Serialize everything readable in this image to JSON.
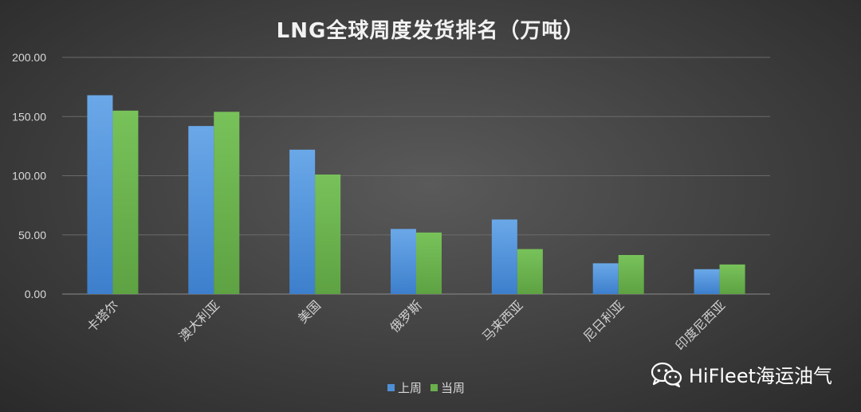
{
  "chart_data": {
    "type": "bar",
    "title": "LNG全球周度发货排名（万吨）",
    "categories": [
      "卡塔尔",
      "澳大利亚",
      "美国",
      "俄罗斯",
      "马来西亚",
      "尼日利亚",
      "印度尼西亚"
    ],
    "series": [
      {
        "name": "上周",
        "color": "#4f8fd6",
        "values": [
          168,
          142,
          122,
          55,
          63,
          26,
          21
        ]
      },
      {
        "name": "当周",
        "color": "#6ab04c",
        "values": [
          155,
          154,
          101,
          52,
          38,
          33,
          25
        ]
      }
    ],
    "ylim": [
      0,
      200
    ],
    "yticks": [
      "0.00",
      "50.00",
      "100.00",
      "150.00",
      "200.00"
    ],
    "xlabel": "",
    "ylabel": "",
    "grid": true,
    "legend": "bottom"
  },
  "watermark": {
    "icon": "wechat-icon",
    "text": "HiFleet海运油气"
  }
}
